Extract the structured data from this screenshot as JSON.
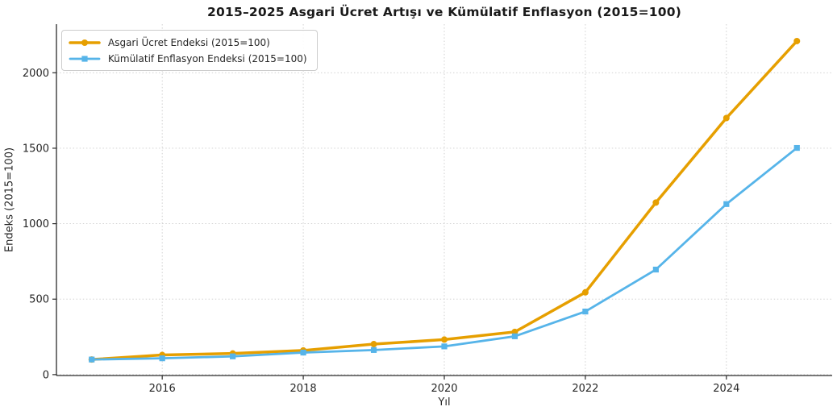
{
  "chart_data": {
    "type": "line",
    "title": "2015–2025 Asgari Ücret Artışı ve Kümülatif Enflasyon (2015=100)",
    "xlabel": "Yıl",
    "ylabel": "Endeks (2015=100)",
    "x": [
      2015,
      2016,
      2017,
      2018,
      2019,
      2020,
      2021,
      2022,
      2023,
      2024,
      2025
    ],
    "series": [
      {
        "name": "Asgari Ücret Endeksi (2015=100)",
        "color": "#E69F00",
        "marker": "circle",
        "line_width": 3.5,
        "values": [
          100,
          130,
          140,
          160,
          202,
          232,
          283,
          545,
          1140,
          1700,
          2210
        ]
      },
      {
        "name": "Kümülatif Enflasyon Endeksi (2015=100)",
        "color": "#56B4E9",
        "marker": "square",
        "line_width": 2.8,
        "values": [
          100,
          108,
          121,
          146,
          163,
          187,
          254,
          418,
          696,
          1130,
          1502
        ]
      }
    ],
    "xticks": {
      "values": [
        2016,
        2018,
        2020,
        2022,
        2024
      ],
      "labels": [
        "2016",
        "2018",
        "2020",
        "2022",
        "2024"
      ]
    },
    "yticks": {
      "values": [
        0,
        500,
        1000,
        1500,
        2000
      ],
      "labels": [
        "0",
        "500",
        "1000",
        "1500",
        "2000"
      ]
    },
    "xlim": [
      2014.5,
      2025.5
    ],
    "ylim": [
      -6,
      2322
    ],
    "grid": true,
    "grid_style": "dotted",
    "legend_position": "upper-left",
    "colors": {
      "grid": "#cccccc",
      "spine": "#2b2b2b",
      "text": "#262626",
      "title": "#1a1a1a",
      "background": "#ffffff"
    }
  }
}
